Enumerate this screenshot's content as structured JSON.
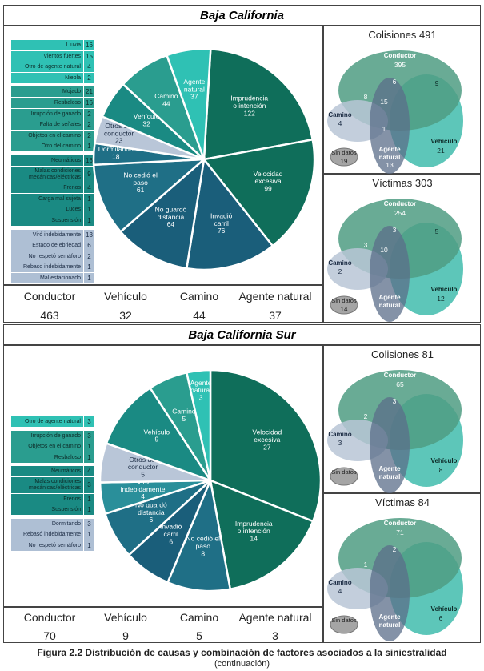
{
  "regions": [
    {
      "title": "Baja California",
      "legend_groups": [
        {
          "color": "#2fc1b4",
          "items": [
            [
              "Lluvia",
              "16"
            ],
            [
              "Vientos fuertes",
              "15"
            ],
            [
              "Otro de agente natural",
              "4"
            ],
            [
              "Niebla",
              "2"
            ]
          ]
        },
        {
          "color": "#2a9d8f",
          "items": [
            [
              "Mojado",
              "21"
            ],
            [
              "Resbaloso",
              "16"
            ],
            [
              "Irrupción de ganado",
              "2"
            ],
            [
              "Falta de señales",
              "2"
            ],
            [
              "Objetos en el camino",
              "2"
            ],
            [
              "Otro del camino",
              "1"
            ]
          ]
        },
        {
          "color": "#1a8a83",
          "items": [
            [
              "Neumáticos",
              "16"
            ],
            [
              "Malas condiciones mecánicas/eléctricas",
              "9"
            ],
            [
              "Frenos",
              "4"
            ],
            [
              "Carga mal sujeta",
              "1"
            ],
            [
              "Luces",
              "1"
            ],
            [
              "Suspensión",
              "1"
            ]
          ]
        },
        {
          "color": "#aebfd4",
          "items": [
            [
              "Viró indebidamente",
              "13"
            ],
            [
              "Estado de ebriedad",
              "6"
            ],
            [
              "No respetó semáforo",
              "2"
            ],
            [
              "Rebaso indebidamente",
              "1"
            ],
            [
              "Mal estacionado",
              "1"
            ]
          ]
        }
      ],
      "totals": {
        "labels": [
          "Conductor",
          "Vehículo",
          "Camino",
          "Agente natural"
        ],
        "values": [
          "463",
          "32",
          "44",
          "37"
        ]
      },
      "venn": [
        {
          "title": "Colisiones",
          "total": "491",
          "conductor": "Conductor",
          "conductor_n": "395",
          "camino": "Camino",
          "camino_n": "4",
          "vehiculo": "Vehículo",
          "vehiculo_n": "21",
          "agente": "Agente natural",
          "agente_n": "13",
          "sindatos": "Sin datos",
          "sindatos_n": "19",
          "overlaps": [
            "6",
            "9",
            "8",
            "15",
            "1"
          ]
        },
        {
          "title": "Víctimas",
          "total": "303",
          "conductor": "Conductor",
          "conductor_n": "254",
          "camino": "Camino",
          "camino_n": "2",
          "vehiculo": "Vehículo",
          "vehiculo_n": "12",
          "agente": "Agente natural",
          "agente_n": "",
          "sindatos": "Sin datos",
          "sindatos_n": "14",
          "overlaps": [
            "3",
            "5",
            "3",
            "10",
            ""
          ]
        }
      ]
    },
    {
      "title": "Baja California Sur",
      "legend_groups": [
        {
          "color": "#2fc1b4",
          "items": [
            [
              "Otro de agente natural",
              "3"
            ]
          ]
        },
        {
          "color": "#2a9d8f",
          "items": [
            [
              "Irrupción de ganado",
              "3"
            ],
            [
              "Objetos en el camino",
              "1"
            ],
            [
              "Resbaloso",
              "1"
            ]
          ]
        },
        {
          "color": "#1a8a83",
          "items": [
            [
              "Neumáticos",
              "4"
            ],
            [
              "Malas condiciones mecánicas/eléctricas",
              "3"
            ],
            [
              "Frenos",
              "1"
            ],
            [
              "Suspensión",
              "1"
            ]
          ]
        },
        {
          "color": "#aebfd4",
          "items": [
            [
              "Dormitando",
              "3"
            ],
            [
              "Rebasó indebidamente",
              "1"
            ],
            [
              "No respetó semáforo",
              "1"
            ]
          ]
        }
      ],
      "totals": {
        "labels": [
          "Conductor",
          "Vehículo",
          "Camino",
          "Agente natural"
        ],
        "values": [
          "70",
          "9",
          "5",
          "3"
        ]
      },
      "venn": [
        {
          "title": "Colisiones",
          "total": "81",
          "conductor": "Conductor",
          "conductor_n": "65",
          "camino": "Camino",
          "camino_n": "3",
          "vehiculo": "Vehículo",
          "vehiculo_n": "8",
          "agente": "Agente natural",
          "agente_n": "",
          "sindatos": "Sin datos",
          "sindatos_n": "",
          "overlaps": [
            "3",
            "",
            "2",
            "",
            ""
          ]
        },
        {
          "title": "Víctimas",
          "total": "84",
          "conductor": "Conductor",
          "conductor_n": "71",
          "camino": "Camino",
          "camino_n": "4",
          "vehiculo": "Vehículo",
          "vehiculo_n": "6",
          "agente": "Agente natural",
          "agente_n": "",
          "sindatos": "Sin datos",
          "sindatos_n": "",
          "overlaps": [
            "2",
            "",
            "1",
            "",
            ""
          ]
        }
      ]
    }
  ],
  "chart_data": [
    {
      "type": "pie",
      "title": "Baja California",
      "slices": [
        {
          "label": "Imprudencia o intención",
          "value": 122,
          "color": "#0f6e5a"
        },
        {
          "label": "Velocidad excesiva",
          "value": 99,
          "color": "#0f6e5a"
        },
        {
          "label": "Invadió carril",
          "value": 76,
          "color": "#1a5e7a"
        },
        {
          "label": "No guardó distancia",
          "value": 64,
          "color": "#1a5e7a"
        },
        {
          "label": "No cedió el paso",
          "value": 61,
          "color": "#1f6f86"
        },
        {
          "label": "Dormitando",
          "value": 18,
          "color": "#1f6f86"
        },
        {
          "label": "Otros del conductor",
          "value": 23,
          "color": "#b9c6d8"
        },
        {
          "label": "Vehículo",
          "value": 32,
          "color": "#1a8a83"
        },
        {
          "label": "Camino",
          "value": 44,
          "color": "#2a9d8f"
        },
        {
          "label": "Agente natural",
          "value": 37,
          "color": "#2fc1b4"
        }
      ]
    },
    {
      "type": "pie",
      "title": "Baja California Sur",
      "slices": [
        {
          "label": "Velocidad excesiva",
          "value": 27,
          "color": "#0f6e5a"
        },
        {
          "label": "Imprudencia o intención",
          "value": 14,
          "color": "#0f6e5a"
        },
        {
          "label": "No cedió el paso",
          "value": 8,
          "color": "#1f6f86"
        },
        {
          "label": "Invadió carril",
          "value": 6,
          "color": "#1a5e7a"
        },
        {
          "label": "No guardó distancia",
          "value": 6,
          "color": "#1f6f86"
        },
        {
          "label": "Viró indebidamente",
          "value": 4,
          "color": "#2a8f9a"
        },
        {
          "label": "Otros del conductor",
          "value": 5,
          "color": "#b9c6d8"
        },
        {
          "label": "Vehículo",
          "value": 9,
          "color": "#1a8a83"
        },
        {
          "label": "Camino",
          "value": 5,
          "color": "#2a9d8f"
        },
        {
          "label": "Agente natural",
          "value": 3,
          "color": "#2fc1b4"
        }
      ]
    }
  ],
  "caption": {
    "main": "Figura 2.2 Distribución de causas y combinación de factores asociados a la siniestralidad",
    "sub": "(continuación)"
  }
}
